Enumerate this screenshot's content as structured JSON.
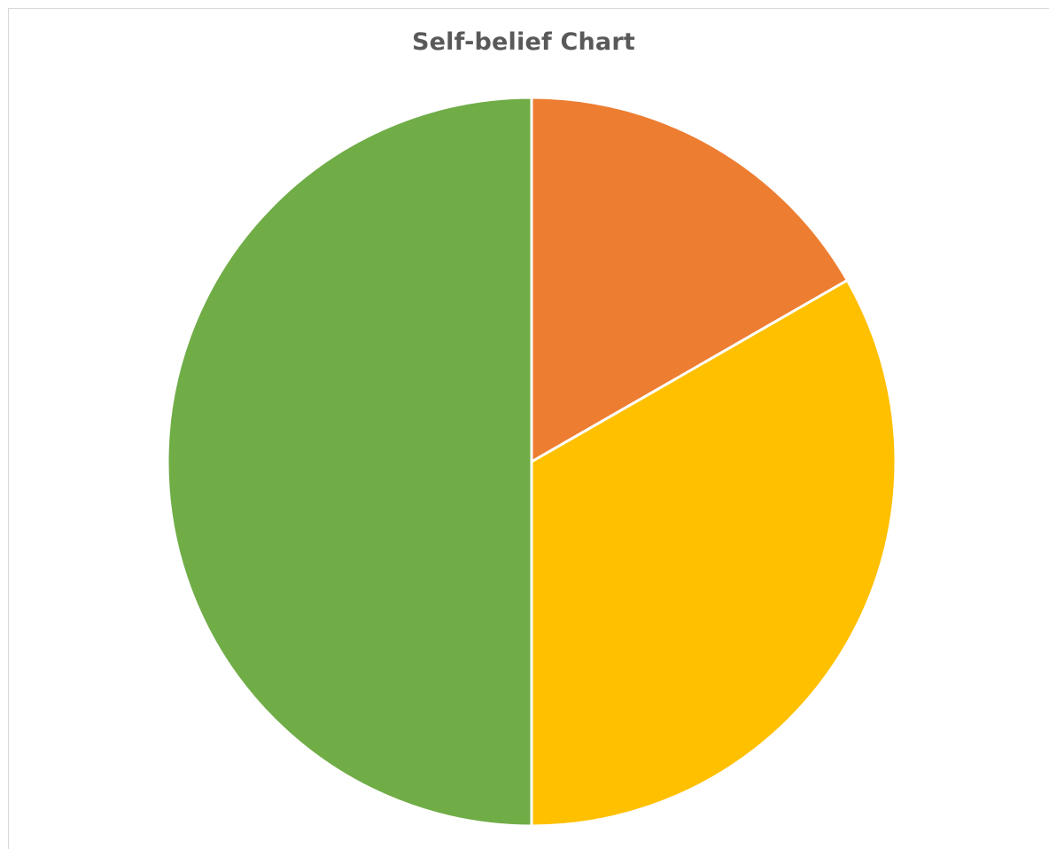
{
  "chart_data": {
    "type": "pie",
    "title": "Self-belief Chart",
    "categories": [
      "",
      "",
      ""
    ],
    "values": [
      16.7,
      33.3,
      50
    ],
    "colors": [
      "#ED7D31",
      "#FFC000",
      "#70AD47"
    ],
    "start_angle_deg": 0,
    "direction": "clockwise",
    "legend": "none",
    "slice_border_color": "#FFFFFF"
  }
}
